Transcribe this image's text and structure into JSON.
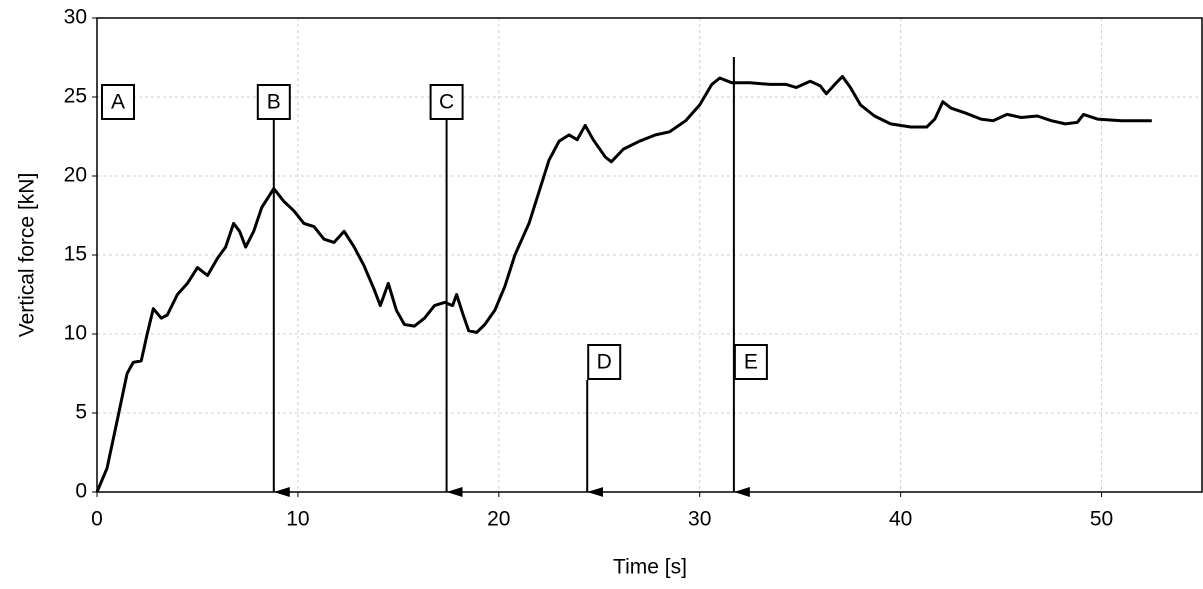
{
  "chart_data": {
    "type": "line",
    "x_label": "Time [s]",
    "y_label": "Vertical force [kN]",
    "xlim": [
      0,
      55
    ],
    "ylim": [
      0,
      30
    ],
    "xticks": [
      0,
      10,
      20,
      30,
      40,
      50
    ],
    "yticks": [
      0,
      5,
      10,
      15,
      20,
      25,
      30
    ],
    "grid": true,
    "series": [
      {
        "color": "#000000",
        "x": [
          0,
          0.5,
          1,
          1.5,
          1.8,
          2.2,
          2.5,
          2.8,
          3.2,
          3.5,
          4,
          4.5,
          5,
          5.5,
          6,
          6.4,
          6.8,
          7.1,
          7.4,
          7.8,
          8.2,
          8.8,
          9.3,
          9.8,
          10.3,
          10.8,
          11.3,
          11.8,
          12.3,
          12.8,
          13.3,
          13.8,
          14.1,
          14.5,
          14.9,
          15.3,
          15.8,
          16.3,
          16.8,
          17.3,
          17.7,
          17.9,
          18.2,
          18.5,
          18.9,
          19.3,
          19.8,
          20.3,
          20.8,
          21.5,
          22,
          22.5,
          23,
          23.5,
          23.9,
          24.3,
          24.7,
          25.3,
          25.6,
          26.2,
          27,
          27.8,
          28.5,
          29.3,
          30,
          30.6,
          31,
          31.6,
          32.5,
          33.5,
          34.3,
          34.8,
          35.5,
          36,
          36.3,
          36.8,
          37.1,
          37.5,
          38,
          38.7,
          39.5,
          40.5,
          41.3,
          41.7,
          42.1,
          42.5,
          43.2,
          44,
          44.6,
          45.3,
          46,
          46.8,
          47.5,
          48.2,
          48.8,
          49.1,
          49.8,
          51,
          52.5
        ],
        "values": [
          0,
          1.5,
          4.5,
          7.5,
          8.2,
          8.3,
          10,
          11.6,
          11,
          11.2,
          12.5,
          13.2,
          14.2,
          13.7,
          14.8,
          15.5,
          17,
          16.5,
          15.5,
          16.5,
          18,
          19.2,
          18.4,
          17.8,
          17,
          16.8,
          16,
          15.8,
          16.5,
          15.5,
          14.3,
          12.8,
          11.8,
          13.2,
          11.5,
          10.6,
          10.5,
          11,
          11.8,
          12,
          11.8,
          12.5,
          11.3,
          10.2,
          10.1,
          10.6,
          11.5,
          13,
          15,
          17,
          19,
          21,
          22.2,
          22.6,
          22.3,
          23.2,
          22.3,
          21.2,
          20.9,
          21.7,
          22.2,
          22.6,
          22.8,
          23.5,
          24.5,
          25.8,
          26.2,
          25.9,
          25.9,
          25.8,
          25.8,
          25.6,
          26,
          25.7,
          25.2,
          25.9,
          26.3,
          25.6,
          24.5,
          23.8,
          23.3,
          23.1,
          23.1,
          23.6,
          24.7,
          24.3,
          24,
          23.6,
          23.5,
          23.9,
          23.7,
          23.8,
          23.5,
          23.3,
          23.4,
          23.9,
          23.6,
          23.5,
          23.5
        ]
      }
    ],
    "annotations": [
      {
        "label": "A"
      },
      {
        "label": "B",
        "x": 8.8
      },
      {
        "label": "C",
        "x": 17.4
      },
      {
        "label": "D",
        "x": 24.4
      },
      {
        "label": "E",
        "x": 31.7
      }
    ]
  }
}
